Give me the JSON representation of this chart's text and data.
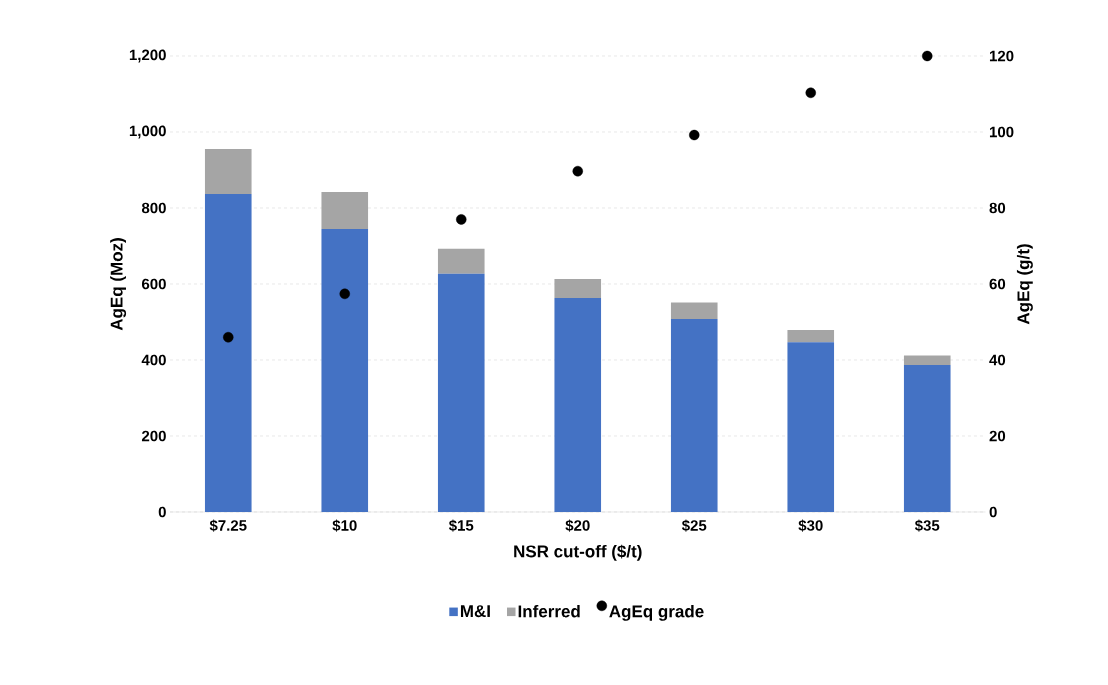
{
  "chart_data": {
    "type": "bar",
    "stacked": true,
    "xlabel": "NSR cut-off ($/t)",
    "ylabel": "AgEq (Moz)",
    "y2label": "AgEq (g/t)",
    "categories": [
      "$7.25",
      "$10",
      "$15",
      "$20",
      "$25",
      "$30",
      "$35"
    ],
    "series": [
      {
        "name": "M&I",
        "color": "#4472c4",
        "values": [
          837,
          745,
          627,
          563,
          508,
          447,
          387
        ]
      },
      {
        "name": "Inferred",
        "color": "#a5a5a5",
        "values": [
          118,
          97,
          66,
          50,
          43,
          32,
          25
        ]
      },
      {
        "name": "AgEq grade",
        "type": "scatter",
        "axis": "y2",
        "color": "#000000",
        "values": [
          46,
          57.4,
          77,
          89.7,
          99.2,
          110.3,
          120
        ]
      }
    ],
    "ylim": [
      0,
      1200
    ],
    "yticks": [
      0,
      200,
      400,
      600,
      800,
      {
        "value": 1000,
        "label": "1,000"
      },
      {
        "value": 1200,
        "label": "1,200"
      }
    ],
    "y2lim": [
      0,
      120
    ],
    "y2ticks": [
      0,
      20,
      40,
      60,
      80,
      100,
      120
    ],
    "grid": "y",
    "legend": "bottom"
  }
}
